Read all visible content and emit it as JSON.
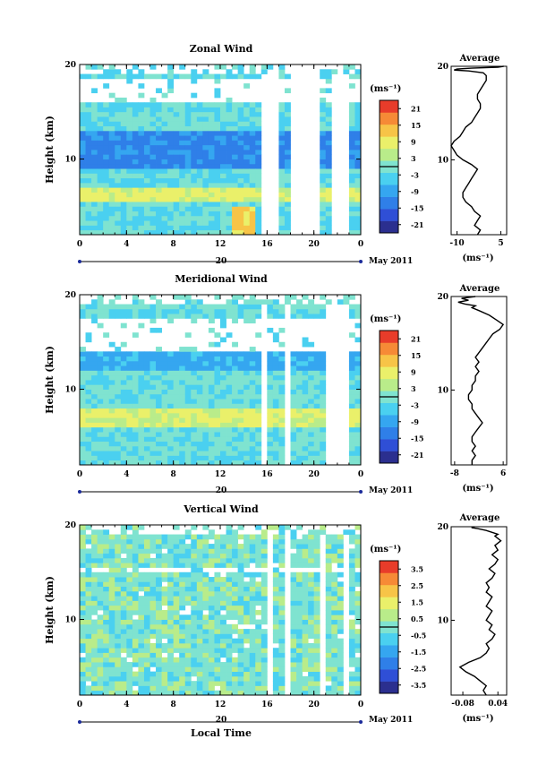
{
  "figure": {
    "xlabel": "Local Time",
    "date_label": "May 2011",
    "day_label": "20"
  },
  "chart_data": [
    {
      "type": "heatmap",
      "title": "Zonal Wind",
      "ylabel": "Height (km)",
      "x_ticks": [
        "0",
        "4",
        "8",
        "12",
        "16",
        "20",
        "0"
      ],
      "y_ticks": [
        "10",
        "20"
      ],
      "xlim": [
        0,
        24
      ],
      "ylim": [
        2,
        20
      ],
      "colorbar": {
        "unit_label": "(ms⁻¹)",
        "ticks": [
          "21",
          "15",
          "9",
          "3",
          "-3",
          "-9",
          "-15",
          "-21"
        ],
        "range": [
          -24,
          24
        ],
        "colors": [
          "#2b2f8f",
          "#2f4fd6",
          "#2f7fe8",
          "#35a6f0",
          "#4ad0f0",
          "#7fe3d0",
          "#b9ec8a",
          "#eaf06a",
          "#f7c447",
          "#f68a36",
          "#e83c2a"
        ]
      },
      "heatmap_description_values": {
        "gap_hours": [
          15.6,
          17.2,
          17.8,
          20.5,
          21.3,
          22.9
        ],
        "missing_height_band_km": [
          16,
          18.5
        ]
      },
      "average_profile": {
        "title": "Average",
        "x_ticks": [
          "-10",
          "5"
        ],
        "y_ticks": [
          "10",
          "20"
        ],
        "xlabel": "(ms⁻¹)",
        "xlim": [
          -12,
          7
        ],
        "x": [
          -3,
          -2,
          -4,
          -3,
          -2,
          -4,
          -5,
          -7,
          -8,
          -8,
          -7,
          -6,
          -5,
          -4,
          -3,
          -5,
          -8,
          -10,
          -11,
          -12,
          -11,
          -9,
          -8,
          -7,
          -5,
          -4,
          -3,
          -2,
          -2,
          -3,
          -3,
          -2,
          -1,
          0,
          0,
          -1,
          -6,
          -11,
          -10,
          -5,
          4,
          6
        ],
        "y": [
          2.0,
          2.5,
          3.0,
          3.5,
          4.0,
          4.5,
          5.0,
          5.5,
          6.0,
          6.5,
          7.0,
          7.5,
          8.0,
          8.5,
          9.0,
          9.5,
          10.0,
          10.5,
          11.0,
          11.5,
          12.0,
          12.5,
          13.0,
          13.5,
          14.0,
          14.5,
          15.0,
          15.5,
          16.0,
          16.5,
          17.0,
          17.5,
          18.0,
          18.5,
          19.0,
          19.3,
          19.5,
          19.6,
          19.7,
          19.8,
          19.9,
          20.0
        ]
      }
    },
    {
      "type": "heatmap",
      "title": "Meridional Wind",
      "ylabel": "Height (km)",
      "x_ticks": [
        "0",
        "4",
        "8",
        "12",
        "16",
        "20",
        "0"
      ],
      "y_ticks": [
        "10",
        "20"
      ],
      "xlim": [
        0,
        24
      ],
      "ylim": [
        2,
        20
      ],
      "colorbar": {
        "unit_label": "(ms⁻¹)",
        "ticks": [
          "21",
          "15",
          "9",
          "3",
          "-3",
          "-9",
          "-15",
          "-21"
        ],
        "range": [
          -24,
          24
        ],
        "colors": [
          "#2b2f8f",
          "#2f4fd6",
          "#2f7fe8",
          "#35a6f0",
          "#4ad0f0",
          "#7fe3d0",
          "#b9ec8a",
          "#eaf06a",
          "#f7c447",
          "#f68a36",
          "#e83c2a"
        ]
      },
      "heatmap_description_values": {
        "gap_hours": [
          15.4,
          16.0,
          17.3,
          18.0,
          21.2,
          23.0
        ],
        "missing_height_band_km": [
          14,
          17.5
        ]
      },
      "average_profile": {
        "title": "Average",
        "x_ticks": [
          "-8",
          "6"
        ],
        "y_ticks": [
          "10",
          "20"
        ],
        "xlabel": "(ms⁻¹)",
        "xlim": [
          -9,
          7
        ],
        "x": [
          -3,
          -3,
          -2,
          -3,
          -2,
          -3,
          -3,
          -2,
          -1,
          0,
          -1,
          -2,
          -3,
          -3,
          -4,
          -4,
          -3,
          -3,
          -2,
          -2,
          -1,
          -2,
          -1,
          -2,
          -1,
          0,
          1,
          2,
          3,
          5,
          6,
          4,
          2,
          -1,
          -3,
          -2,
          -5,
          -7,
          -4,
          -6,
          -2
        ],
        "y": [
          2.0,
          2.5,
          3.0,
          3.5,
          4.0,
          4.5,
          5.0,
          5.5,
          6.0,
          6.5,
          7.0,
          7.5,
          8.0,
          8.5,
          9.0,
          9.5,
          10.0,
          10.5,
          11.0,
          11.5,
          12.0,
          12.5,
          13.0,
          13.5,
          14.0,
          14.5,
          15.0,
          15.5,
          16.0,
          16.5,
          17.0,
          17.5,
          18.0,
          18.5,
          18.8,
          19.0,
          19.2,
          19.4,
          19.6,
          19.8,
          20.0
        ]
      }
    },
    {
      "type": "heatmap",
      "title": "Vertical Wind",
      "ylabel": "Height (km)",
      "x_ticks": [
        "0",
        "4",
        "8",
        "12",
        "16",
        "20",
        "0"
      ],
      "y_ticks": [
        "10",
        "20"
      ],
      "xlim": [
        0,
        24
      ],
      "ylim": [
        2,
        20
      ],
      "colorbar": {
        "unit_label": "(ms⁻¹)",
        "ticks": [
          "3.5",
          "2.5",
          "1.5",
          "0.5",
          "-0.5",
          "-1.5",
          "-2.5",
          "-3.5"
        ],
        "range": [
          -4,
          4
        ],
        "colors": [
          "#2b2f8f",
          "#2f4fd6",
          "#2f7fe8",
          "#35a6f0",
          "#4ad0f0",
          "#7fe3d0",
          "#b9ec8a",
          "#eaf06a",
          "#f7c447",
          "#f68a36",
          "#e83c2a"
        ]
      },
      "heatmap_description_values": {
        "gap_hours": [
          16.0,
          16.5,
          17.3,
          17.8,
          20.5,
          21.2,
          22.7,
          23.0
        ],
        "missing_height_band_km": [
          15,
          15.5
        ]
      },
      "average_profile": {
        "title": "Average",
        "x_ticks": [
          "-0.08",
          "0.04"
        ],
        "y_ticks": [
          "10",
          "20"
        ],
        "xlabel": "(ms⁻¹)",
        "xlim": [
          -0.12,
          0.07
        ],
        "x": [
          0.0,
          -0.01,
          0.0,
          -0.02,
          -0.04,
          -0.07,
          -0.09,
          -0.06,
          -0.02,
          0.0,
          0.01,
          0.0,
          0.02,
          0.03,
          0.01,
          0.02,
          0.0,
          0.01,
          0.02,
          0.0,
          0.01,
          0.02,
          0.0,
          0.01,
          0.0,
          0.02,
          0.03,
          0.01,
          0.03,
          0.04,
          0.02,
          0.04,
          0.03,
          0.05,
          0.03,
          0.04,
          0.02,
          0.0,
          -0.03,
          -0.05,
          -0.04
        ],
        "y": [
          2.0,
          2.5,
          3.0,
          3.5,
          4.0,
          4.5,
          5.0,
          5.5,
          6.0,
          6.5,
          7.0,
          7.5,
          8.0,
          8.5,
          9.0,
          9.5,
          10.0,
          10.5,
          11.0,
          11.5,
          12.0,
          12.5,
          13.0,
          13.5,
          14.0,
          14.5,
          15.0,
          15.5,
          16.0,
          16.5,
          17.0,
          17.5,
          18.0,
          18.5,
          19.0,
          19.2,
          19.4,
          19.6,
          19.8,
          19.9,
          20.0
        ]
      }
    }
  ]
}
